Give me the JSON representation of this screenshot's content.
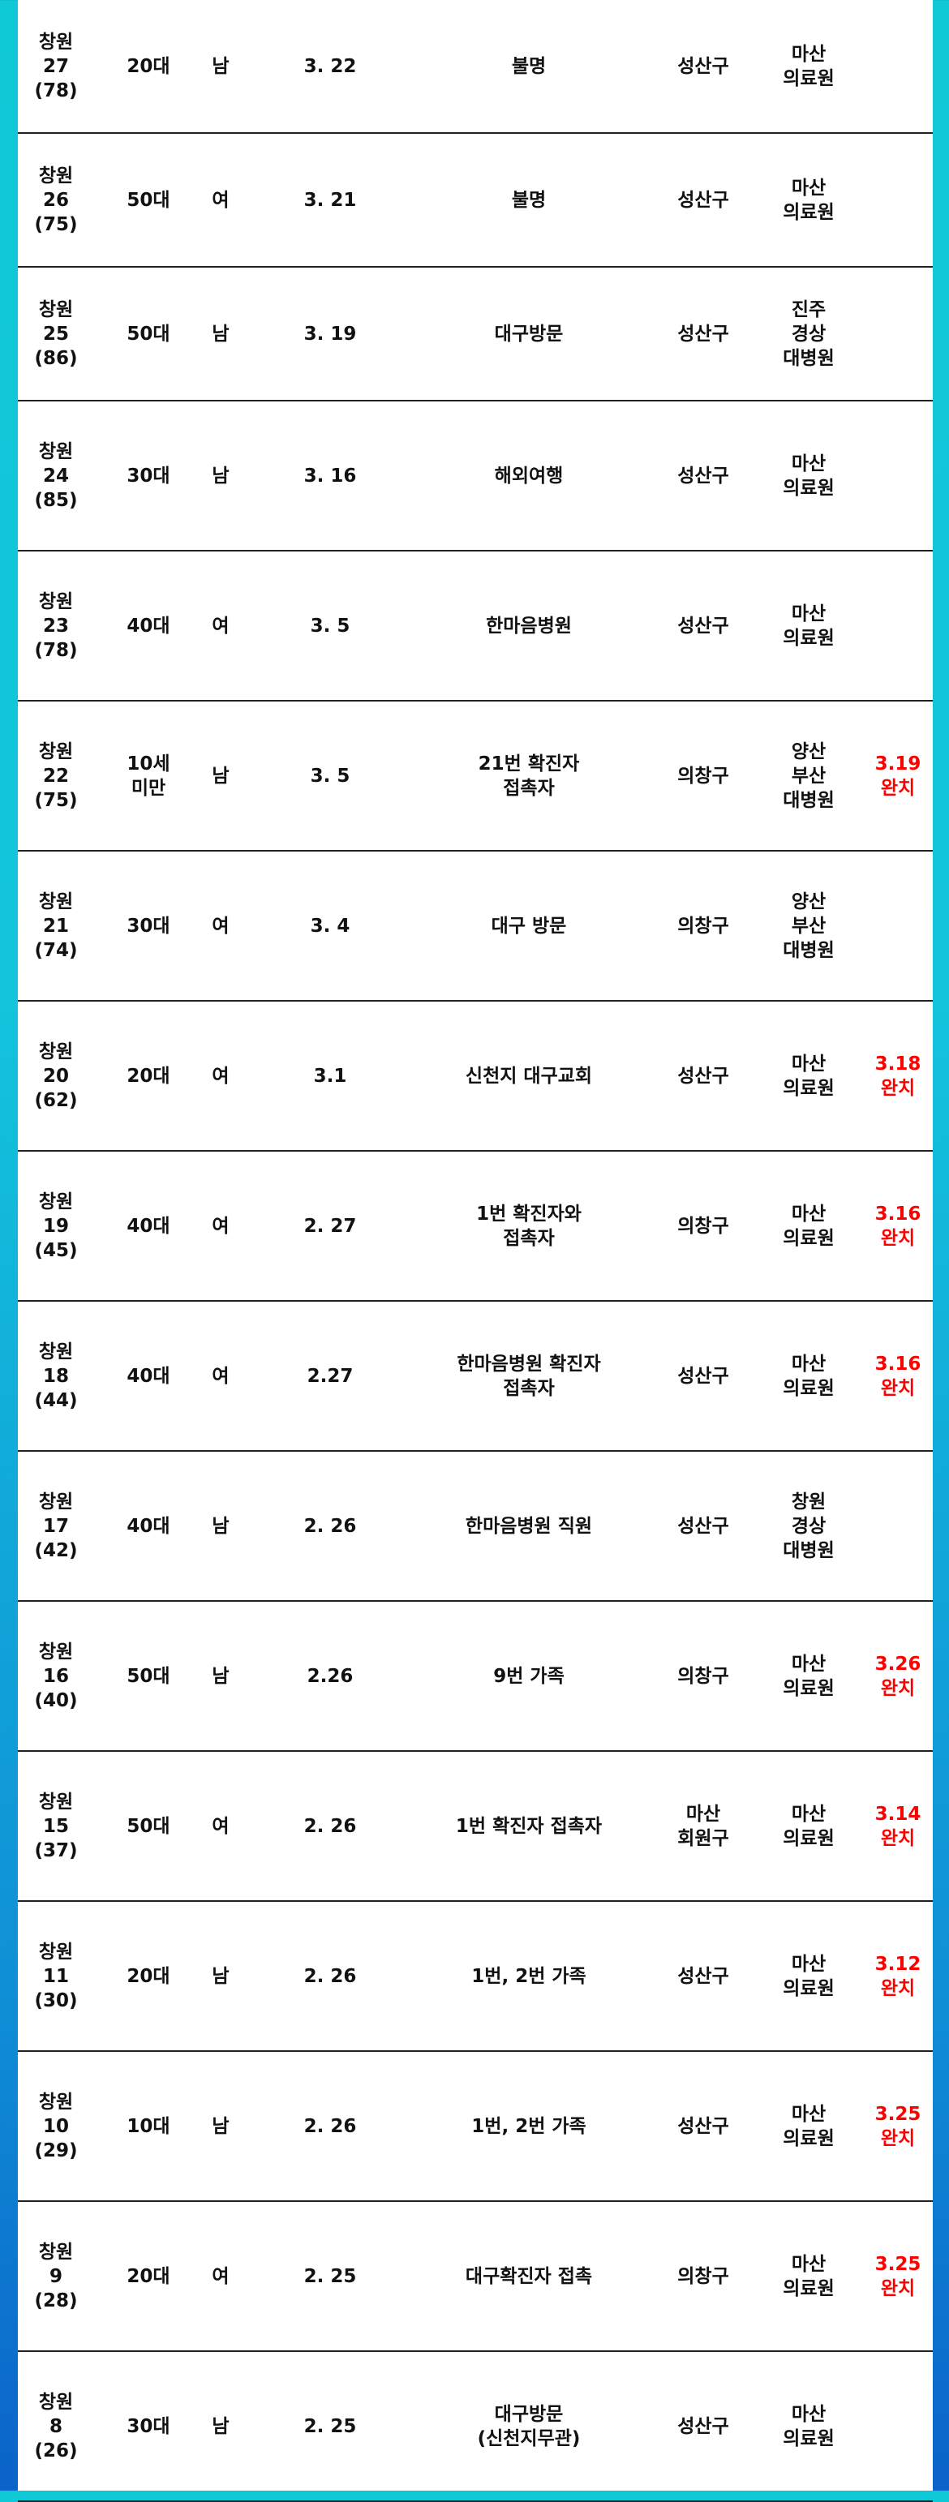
{
  "rows": [
    {
      "id": "창원\n27\n(78)",
      "age": "20대",
      "sex": "남",
      "date": "3. 22",
      "source": "불명",
      "district": "성산구",
      "hospital": "마산\n의료원",
      "discharge": ""
    },
    {
      "id": "창원\n26\n(75)",
      "age": "50대",
      "sex": "여",
      "date": "3. 21",
      "source": "불명",
      "district": "성산구",
      "hospital": "마산\n의료원",
      "discharge": ""
    },
    {
      "id": "창원\n25\n(86)",
      "age": "50대",
      "sex": "남",
      "date": "3. 19",
      "source": "대구방문",
      "district": "성산구",
      "hospital": "진주\n경상\n대병원",
      "discharge": ""
    },
    {
      "id": "창원\n24\n(85)",
      "age": "30대",
      "sex": "남",
      "date": "3. 16",
      "source": "해외여행",
      "district": "성산구",
      "hospital": "마산\n의료원",
      "discharge": ""
    },
    {
      "id": "창원\n23\n(78)",
      "age": "40대",
      "sex": "여",
      "date": "3. 5",
      "source": "한마음병원",
      "district": "성산구",
      "hospital": "마산\n의료원",
      "discharge": ""
    },
    {
      "id": "창원\n22\n(75)",
      "age": "10세\n미만",
      "sex": "남",
      "date": "3. 5",
      "source": "21번 확진자\n접촉자",
      "district": "의창구",
      "hospital": "양산\n부산\n대병원",
      "discharge": "3.19\n완치"
    },
    {
      "id": "창원\n21\n(74)",
      "age": "30대",
      "sex": "여",
      "date": "3. 4",
      "source": "대구 방문",
      "district": "의창구",
      "hospital": "양산\n부산\n대병원",
      "discharge": ""
    },
    {
      "id": "창원\n20\n(62)",
      "age": "20대",
      "sex": "여",
      "date": "3.1",
      "source": "신천지 대구교회",
      "district": "성산구",
      "hospital": "마산\n의료원",
      "discharge": "3.18\n완치"
    },
    {
      "id": "창원\n19\n(45)",
      "age": "40대",
      "sex": "여",
      "date": "2. 27",
      "source": "1번 확진자와\n접촉자",
      "district": "의창구",
      "hospital": "마산\n의료원",
      "discharge": "3.16\n완치"
    },
    {
      "id": "창원\n18\n(44)",
      "age": "40대",
      "sex": "여",
      "date": "2.27",
      "source": "한마음병원 확진자\n접촉자",
      "district": "성산구",
      "hospital": "마산\n의료원",
      "discharge": "3.16\n완치"
    },
    {
      "id": "창원\n17\n(42)",
      "age": "40대",
      "sex": "남",
      "date": "2. 26",
      "source": "한마음병원 직원",
      "district": "성산구",
      "hospital": "창원\n경상\n대병원",
      "discharge": ""
    },
    {
      "id": "창원\n16\n(40)",
      "age": "50대",
      "sex": "남",
      "date": "2.26",
      "source": "9번 가족",
      "district": "의창구",
      "hospital": "마산\n의료원",
      "discharge": "3.26\n완치"
    },
    {
      "id": "창원\n15\n(37)",
      "age": "50대",
      "sex": "여",
      "date": "2. 26",
      "source": "1번 확진자 접촉자",
      "district": "마산\n회원구",
      "hospital": "마산\n의료원",
      "discharge": "3.14\n완치"
    },
    {
      "id": "창원\n11\n(30)",
      "age": "20대",
      "sex": "남",
      "date": "2. 26",
      "source": "1번, 2번 가족",
      "district": "성산구",
      "hospital": "마산\n의료원",
      "discharge": "3.12\n완치"
    },
    {
      "id": "창원\n10\n(29)",
      "age": "10대",
      "sex": "남",
      "date": "2. 26",
      "source": "1번, 2번 가족",
      "district": "성산구",
      "hospital": "마산\n의료원",
      "discharge": "3.25\n완치"
    },
    {
      "id": "창원\n9\n(28)",
      "age": "20대",
      "sex": "여",
      "date": "2. 25",
      "source": "대구확진자 접촉",
      "district": "의창구",
      "hospital": "마산\n의료원",
      "discharge": "3.25\n완치"
    },
    {
      "id": "창원\n8\n(26)",
      "age": "30대",
      "sex": "남",
      "date": "2. 25",
      "source": "대구방문\n(신천지무관)",
      "district": "성산구",
      "hospital": "마산\n의료원",
      "discharge": ""
    }
  ]
}
